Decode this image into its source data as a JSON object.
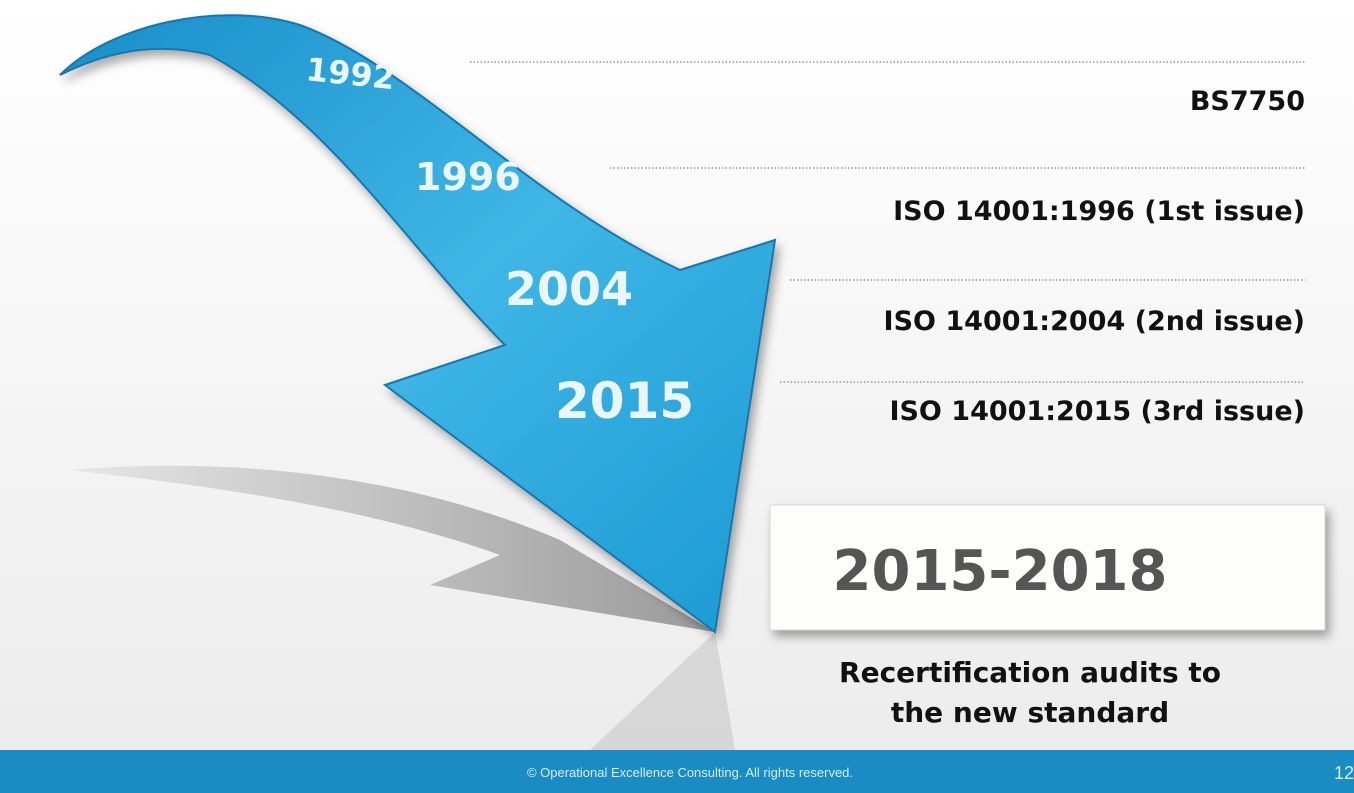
{
  "timeline": [
    {
      "year": "1992",
      "label": "BS7750"
    },
    {
      "year": "1996",
      "label": "ISO 14001:1996 (1st issue)"
    },
    {
      "year": "2004",
      "label": "ISO 14001:2004 (2nd issue)"
    },
    {
      "year": "2015",
      "label": "ISO 14001:2015 (3rd issue)"
    }
  ],
  "period": "2015-2018",
  "caption_lines": [
    "Recertification audits to",
    "the new standard"
  ],
  "footer": "© Operational Excellence Consulting.  All rights reserved.",
  "page_number": "12"
}
